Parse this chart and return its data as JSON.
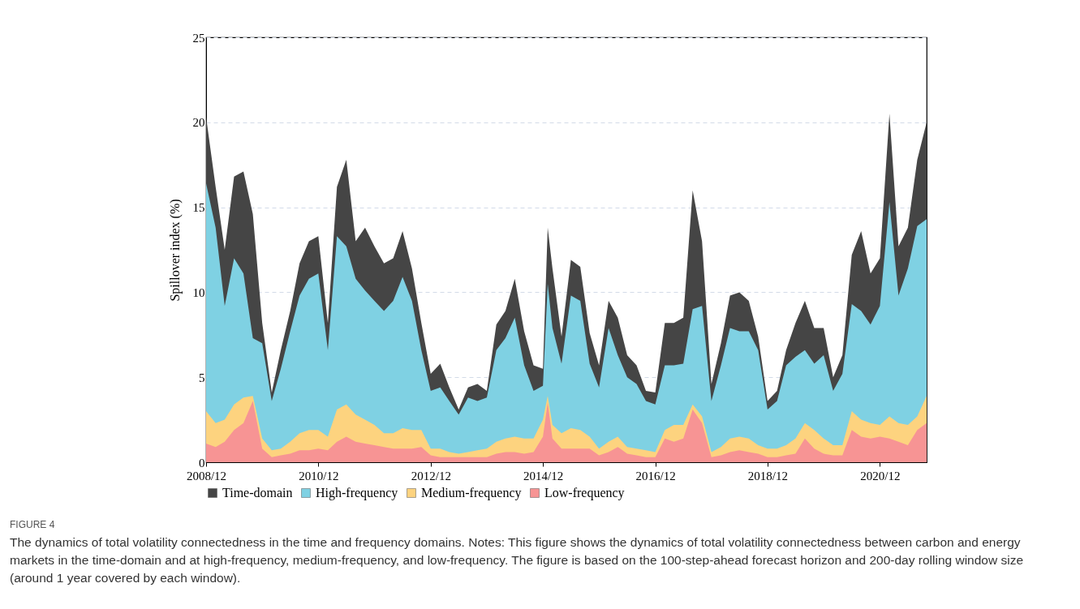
{
  "chart_data": {
    "type": "area",
    "ylabel": "Spillover index (%)",
    "x": [
      "2008-12",
      "2009-02",
      "2009-04",
      "2009-06",
      "2009-08",
      "2009-10",
      "2009-12",
      "2010-02",
      "2010-04",
      "2010-06",
      "2010-08",
      "2010-10",
      "2010-12",
      "2011-02",
      "2011-04",
      "2011-06",
      "2011-08",
      "2011-10",
      "2011-12",
      "2012-02",
      "2012-04",
      "2012-06",
      "2012-08",
      "2012-10",
      "2012-12",
      "2013-02",
      "2013-04",
      "2013-06",
      "2013-08",
      "2013-10",
      "2013-12",
      "2014-02",
      "2014-04",
      "2014-06",
      "2014-08",
      "2014-10",
      "2014-12",
      "2015-01",
      "2015-02",
      "2015-04",
      "2015-06",
      "2015-08",
      "2015-10",
      "2015-12",
      "2016-02",
      "2016-04",
      "2016-06",
      "2016-08",
      "2016-10",
      "2016-12",
      "2017-02",
      "2017-04",
      "2017-06",
      "2017-08",
      "2017-10",
      "2017-12",
      "2018-02",
      "2018-04",
      "2018-06",
      "2018-08",
      "2018-10",
      "2018-12",
      "2019-02",
      "2019-04",
      "2019-06",
      "2019-08",
      "2019-10",
      "2019-12",
      "2020-02",
      "2020-04",
      "2020-06",
      "2020-08",
      "2020-10",
      "2020-12",
      "2021-02",
      "2021-04",
      "2021-06",
      "2021-08",
      "2021-10"
    ],
    "series": [
      {
        "name": "Time-domain",
        "color": "#454545",
        "values": [
          20.3,
          16.2,
          12.5,
          16.8,
          17.1,
          14.6,
          8.2,
          4.1,
          6.6,
          8.9,
          11.7,
          13.0,
          13.3,
          8.2,
          16.2,
          17.8,
          13.0,
          13.8,
          12.7,
          11.7,
          12.0,
          13.6,
          11.4,
          8.2,
          5.2,
          5.8,
          4.4,
          3.1,
          4.4,
          4.6,
          4.2,
          8.1,
          8.9,
          10.8,
          7.7,
          5.7,
          5.5,
          13.8,
          11.4,
          7.4,
          11.9,
          11.5,
          7.6,
          5.7,
          9.5,
          8.5,
          6.3,
          5.7,
          4.2,
          4.1,
          8.2,
          8.2,
          8.5,
          16.0,
          13.0,
          4.6,
          7.0,
          9.8,
          10.0,
          9.5,
          7.4,
          3.6,
          4.2,
          6.6,
          8.2,
          9.5,
          7.9,
          7.9,
          5.0,
          6.3,
          12.2,
          13.6,
          11.1,
          12.0,
          20.5,
          12.7,
          13.8,
          17.8,
          20.0
        ]
      },
      {
        "name": "High-frequency",
        "color": "#7fd1e3",
        "values": [
          16.4,
          13.8,
          9.2,
          12.0,
          11.1,
          7.3,
          7.0,
          3.6,
          5.5,
          7.7,
          9.8,
          10.8,
          11.1,
          6.6,
          13.3,
          12.7,
          10.8,
          10.1,
          9.5,
          8.9,
          9.5,
          10.9,
          9.5,
          6.6,
          4.2,
          4.4,
          3.6,
          2.8,
          3.8,
          3.6,
          3.8,
          6.6,
          7.3,
          8.5,
          5.7,
          4.2,
          4.5,
          10.5,
          7.9,
          5.8,
          9.8,
          9.5,
          5.8,
          4.4,
          7.9,
          6.3,
          5.0,
          4.6,
          3.6,
          3.4,
          5.7,
          5.7,
          5.8,
          9.0,
          9.2,
          3.6,
          5.7,
          7.9,
          7.7,
          7.7,
          6.6,
          3.1,
          3.6,
          5.7,
          6.2,
          6.6,
          5.8,
          6.3,
          4.2,
          5.2,
          9.3,
          8.9,
          8.1,
          9.2,
          15.3,
          9.8,
          11.4,
          13.9,
          14.3
        ]
      },
      {
        "name": "Medium-frequency",
        "color": "#fdd37f",
        "values": [
          3.0,
          2.3,
          2.5,
          3.4,
          3.8,
          3.9,
          1.4,
          0.7,
          0.8,
          1.2,
          1.7,
          1.9,
          1.9,
          1.5,
          3.1,
          3.4,
          2.8,
          2.5,
          2.2,
          1.7,
          1.7,
          2.0,
          1.9,
          1.9,
          0.8,
          0.8,
          0.6,
          0.5,
          0.6,
          0.7,
          0.8,
          1.2,
          1.4,
          1.5,
          1.4,
          1.4,
          2.5,
          3.9,
          2.2,
          1.7,
          2.0,
          1.9,
          1.5,
          0.8,
          1.2,
          1.5,
          0.9,
          0.8,
          0.7,
          0.6,
          1.9,
          2.2,
          2.2,
          3.4,
          2.7,
          0.6,
          0.9,
          1.4,
          1.5,
          1.4,
          1.0,
          0.8,
          0.8,
          1.0,
          1.4,
          2.3,
          1.9,
          1.4,
          1.0,
          1.0,
          3.0,
          2.5,
          2.3,
          2.2,
          2.7,
          2.3,
          2.2,
          2.7,
          3.9
        ]
      },
      {
        "name": "Low-frequency",
        "color": "#f79494",
        "values": [
          1.1,
          0.9,
          1.2,
          1.9,
          2.3,
          3.6,
          0.8,
          0.3,
          0.4,
          0.5,
          0.7,
          0.7,
          0.8,
          0.7,
          1.2,
          1.5,
          1.2,
          1.1,
          1.0,
          0.9,
          0.8,
          0.8,
          0.8,
          0.9,
          0.4,
          0.3,
          0.3,
          0.3,
          0.3,
          0.3,
          0.3,
          0.5,
          0.6,
          0.6,
          0.5,
          0.6,
          1.5,
          3.5,
          1.4,
          0.8,
          0.8,
          0.8,
          0.8,
          0.4,
          0.6,
          0.9,
          0.5,
          0.4,
          0.3,
          0.3,
          1.4,
          1.2,
          1.4,
          3.1,
          2.3,
          0.3,
          0.4,
          0.6,
          0.7,
          0.6,
          0.5,
          0.3,
          0.3,
          0.4,
          0.5,
          1.4,
          0.8,
          0.5,
          0.4,
          0.4,
          1.9,
          1.5,
          1.4,
          1.5,
          1.4,
          1.2,
          1.0,
          1.9,
          2.3
        ]
      }
    ],
    "xlim": [
      "2008-12",
      "2021-10"
    ],
    "xticks": [
      {
        "value": "2008-12",
        "label": "2008/12"
      },
      {
        "value": "2010-12",
        "label": "2010/12"
      },
      {
        "value": "2012-12",
        "label": "2012/12"
      },
      {
        "value": "2014-12",
        "label": "2014/12"
      },
      {
        "value": "2016-12",
        "label": "2016/12"
      },
      {
        "value": "2018-12",
        "label": "2018/12"
      },
      {
        "value": "2020-12",
        "label": "2020/12"
      }
    ],
    "ylim": [
      0,
      25
    ],
    "yticks": [
      0,
      5,
      10,
      15,
      20,
      25
    ],
    "grid": "y",
    "legend": "bottom",
    "annotations": [
      "FIGURE 4",
      "The dynamics of total volatility connectedness in the time and frequency domains. Notes: This figure shows the dynamics of total volatility connectedness between carbon and energy markets in the time-domain and at high-frequency, medium-frequency, and low-frequency. The figure is based on the 100-step-ahead forecast horizon and 200-day rolling window size (around 1 year covered by each window)."
    ]
  }
}
